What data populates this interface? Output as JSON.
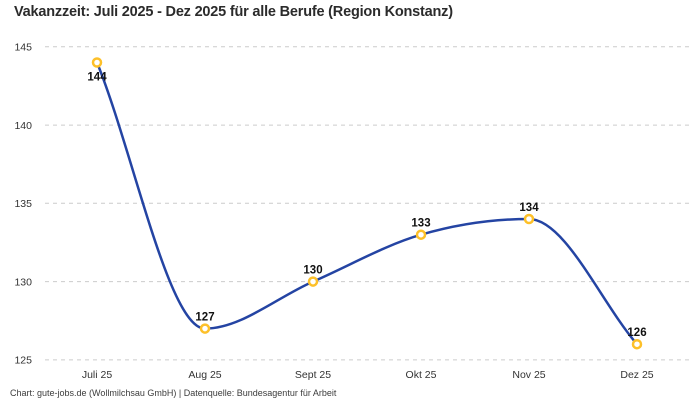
{
  "title": "Vakanzzeit: Juli 2025 - Dez 2025 für alle Berufe (Region Konstanz)",
  "footer": "Chart: gute-jobs.de (Wollmilchsau GmbH) | Datenquelle: Bundesagentur für Arbeit",
  "colors": {
    "line": "#2444a3",
    "marker_ring": "#fdc029",
    "marker_fill": "#ffffff",
    "gridline": "#cccccc",
    "tick_text": "#333333",
    "label_text": "#111111",
    "title_text": "#2b2b2b"
  },
  "chart_data": {
    "type": "line",
    "title": "Vakanzzeit: Juli 2025 - Dez 2025 für alle Berufe (Region Konstanz)",
    "categories": [
      "Juli 25",
      "Aug 25",
      "Sept 25",
      "Okt 25",
      "Nov 25",
      "Dez 25"
    ],
    "values": [
      144,
      127,
      130,
      133,
      134,
      126
    ],
    "data_labels": [
      "144",
      "127",
      "130",
      "133",
      "134",
      "126"
    ],
    "xlabel": "",
    "ylabel": "",
    "ylim": [
      125,
      145
    ],
    "yticks": [
      125,
      130,
      135,
      140,
      145
    ],
    "grid": "horizontal-dashed",
    "legend": "none",
    "marker_style": "open-circle",
    "curve": "smooth-monotone"
  }
}
